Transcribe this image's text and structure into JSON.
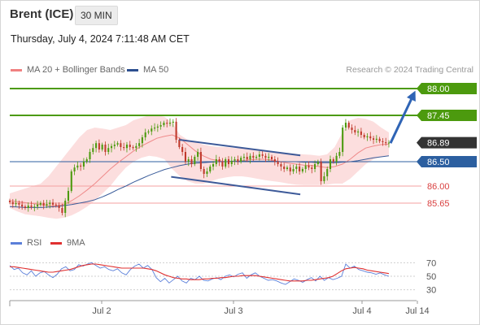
{
  "header": {
    "instrument": "Brent (ICE)",
    "timeframe": "30 MIN"
  },
  "datetime": "Thursday, July 4, 2024 7:11:48 AM CET",
  "legend": {
    "items": [
      {
        "label": "MA 20 + Bollinger Bands",
        "color": "#f08080"
      },
      {
        "label": "MA 50",
        "color": "#2c4f8f"
      }
    ],
    "credit": "Research © 2024 Trading Central"
  },
  "rsi_legend": {
    "items": [
      {
        "label": "RSI",
        "color": "#5b7fd9"
      },
      {
        "label": "9MA",
        "color": "#e03030"
      }
    ]
  },
  "colors": {
    "green": "#4c9a0e",
    "blue": "#2c5fa0",
    "red": "#e06868",
    "dark": "#333333",
    "up": "#4c9a0e",
    "down": "#c0392b"
  },
  "chart_data": [
    {
      "type": "candlestick",
      "title": "Brent (ICE) 30 MIN",
      "ylim": [
        85.2,
        88.2
      ],
      "x_ticks": [
        "Jul 2",
        "Jul 3",
        "Jul 4",
        "Jul 14"
      ],
      "levels": [
        {
          "value": 88.0,
          "label": "88.00",
          "style": "green"
        },
        {
          "value": 87.45,
          "label": "87.45",
          "style": "green"
        },
        {
          "value": 86.89,
          "label": "86.89",
          "style": "current"
        },
        {
          "value": 86.5,
          "label": "86.50",
          "style": "blue"
        },
        {
          "value": 86.0,
          "label": "86.00",
          "style": "red"
        },
        {
          "value": 85.65,
          "label": "85.65",
          "style": "red"
        }
      ],
      "channel": {
        "upper": [
          [
            0.42,
            86.95
          ],
          [
            0.72,
            86.63
          ]
        ],
        "lower": [
          [
            0.4,
            86.19
          ],
          [
            0.72,
            85.83
          ]
        ]
      },
      "projection": {
        "from": 86.88,
        "to": 88.0
      },
      "series": [
        {
          "name": "Price",
          "close": [
            85.67,
            85.63,
            85.65,
            85.62,
            85.58,
            85.55,
            85.6,
            85.57,
            85.58,
            85.62,
            85.65,
            85.6,
            85.63,
            85.66,
            85.62,
            85.6,
            85.55,
            85.45,
            85.7,
            85.9,
            86.3,
            86.38,
            86.42,
            86.4,
            86.5,
            86.55,
            86.7,
            86.78,
            86.88,
            86.75,
            86.85,
            86.7,
            86.78,
            86.82,
            86.85,
            86.88,
            86.8,
            86.78,
            86.85,
            86.8,
            86.78,
            86.82,
            86.88,
            87.0,
            87.1,
            87.12,
            87.18,
            87.2,
            87.22,
            87.25,
            87.3,
            87.28,
            87.3,
            87.32,
            86.95,
            86.8,
            86.7,
            86.5,
            86.55,
            86.45,
            86.6,
            86.7,
            86.35,
            86.25,
            86.3,
            86.4,
            86.45,
            86.55,
            86.5,
            86.4,
            86.55,
            86.45,
            86.52,
            86.55,
            86.5,
            86.58,
            86.6,
            86.55,
            86.62,
            86.58,
            86.6,
            86.65,
            86.62,
            86.58,
            86.6,
            86.55,
            86.5,
            86.45,
            86.4,
            86.35,
            86.38,
            86.3,
            86.35,
            86.4,
            86.3,
            86.35,
            86.42,
            86.38,
            86.35,
            86.45,
            86.5,
            86.1,
            86.2,
            86.35,
            86.55,
            86.5,
            86.62,
            86.7,
            87.2,
            87.3,
            87.2,
            87.15,
            87.1,
            87.12,
            87.05,
            87.0,
            87.02,
            86.98,
            86.95,
            86.97,
            86.92,
            86.9,
            86.88,
            86.89
          ]
        },
        {
          "name": "MA 20",
          "values": [
            85.7,
            85.68,
            85.66,
            85.64,
            85.62,
            85.6,
            85.6,
            85.62,
            85.7,
            85.8,
            85.92,
            86.05,
            86.2,
            86.35,
            86.48,
            86.6,
            86.72,
            86.82,
            86.9,
            86.98,
            87.02,
            87.05,
            86.98,
            86.85,
            86.72,
            86.62,
            86.55,
            86.52,
            86.5,
            86.5,
            86.52,
            86.54,
            86.55,
            86.55,
            86.53,
            86.5,
            86.47,
            86.45,
            86.43,
            86.42,
            86.4,
            86.38,
            86.4,
            86.45,
            86.55,
            86.68,
            86.78,
            86.82,
            86.85,
            86.86
          ]
        },
        {
          "name": "BB upper",
          "values": [
            85.85,
            85.9,
            85.95,
            86.0,
            86.05,
            86.2,
            86.4,
            86.6,
            86.8,
            87.0,
            87.15,
            87.2,
            87.18,
            87.15,
            87.2,
            87.25,
            87.35,
            87.4,
            87.45,
            87.45,
            87.42,
            87.3,
            87.05,
            86.95,
            86.9,
            86.85,
            86.82,
            86.8,
            86.8,
            86.78,
            86.78,
            86.76,
            86.74,
            86.72,
            86.7,
            86.68,
            86.68,
            86.66,
            86.65,
            86.64,
            86.62,
            86.65,
            86.8,
            87.1,
            87.35,
            87.4,
            87.38,
            87.32,
            87.2,
            87.1
          ]
        },
        {
          "name": "BB lower",
          "values": [
            85.55,
            85.48,
            85.42,
            85.4,
            85.38,
            85.35,
            85.33,
            85.35,
            85.4,
            85.48,
            85.58,
            85.7,
            85.85,
            86.0,
            86.2,
            86.38,
            86.5,
            86.58,
            86.62,
            86.6,
            86.55,
            86.35,
            86.2,
            86.1,
            86.05,
            86.05,
            86.1,
            86.15,
            86.18,
            86.2,
            86.2,
            86.18,
            86.15,
            86.12,
            86.1,
            86.08,
            86.05,
            86.03,
            86.02,
            86.02,
            86.02,
            86.03,
            86.05,
            86.05,
            86.15,
            86.3,
            86.45,
            86.55,
            86.6,
            86.62
          ]
        },
        {
          "name": "MA 50",
          "values": [
            85.58,
            85.57,
            85.56,
            85.56,
            85.56,
            85.57,
            85.58,
            85.6,
            85.62,
            85.65,
            85.68,
            85.72,
            85.78,
            85.85,
            85.93,
            86.0,
            86.08,
            86.15,
            86.22,
            86.28,
            86.34,
            86.38,
            86.42,
            86.45,
            86.47,
            86.48,
            86.49,
            86.5,
            86.5,
            86.51,
            86.51,
            86.51,
            86.51,
            86.51,
            86.51,
            86.5,
            86.5,
            86.5,
            86.49,
            86.49,
            86.48,
            86.48,
            86.48,
            86.49,
            86.5,
            86.52,
            86.55,
            86.58,
            86.6,
            86.62
          ]
        }
      ]
    },
    {
      "type": "line",
      "title": "RSI",
      "ylim": [
        20,
        80
      ],
      "y_ticks": [
        70,
        50,
        30
      ],
      "series": [
        {
          "name": "RSI",
          "values": [
            66,
            60,
            62,
            55,
            52,
            58,
            50,
            55,
            57,
            52,
            48,
            53,
            61,
            64,
            58,
            60,
            67,
            65,
            68,
            70,
            66,
            62,
            64,
            60,
            58,
            61,
            55,
            52,
            60,
            65,
            68,
            62,
            66,
            60,
            48,
            42,
            47,
            40,
            45,
            50,
            43,
            40,
            47,
            45,
            50,
            44,
            43,
            46,
            48,
            45,
            50,
            52,
            49,
            53,
            55,
            47,
            52,
            55,
            50,
            47,
            44,
            45,
            43,
            40,
            38,
            42,
            46,
            44,
            41,
            45,
            48,
            43,
            50,
            44,
            48,
            45,
            47,
            50,
            68,
            62,
            65,
            60,
            58,
            56,
            55,
            53,
            55,
            52,
            50
          ]
        },
        {
          "name": "9MA",
          "values": [
            64,
            64,
            63,
            62,
            61,
            60,
            59,
            58,
            57,
            56,
            56,
            57,
            58,
            59,
            60,
            62,
            64,
            66,
            67,
            68,
            68,
            67,
            66,
            65,
            64,
            63,
            62,
            62,
            62,
            62,
            62,
            62,
            61,
            60,
            58,
            55,
            52,
            50,
            48,
            47,
            46,
            46,
            45,
            45,
            45,
            46,
            46,
            47,
            47,
            48,
            48,
            49,
            50,
            50,
            51,
            51,
            51,
            51,
            50,
            49,
            48,
            47,
            46,
            45,
            44,
            43,
            43,
            43,
            43,
            44,
            44,
            45,
            46,
            47,
            48,
            50,
            54,
            58,
            61,
            62,
            63,
            62,
            61,
            59,
            58,
            57,
            56,
            55,
            54
          ]
        }
      ]
    }
  ]
}
